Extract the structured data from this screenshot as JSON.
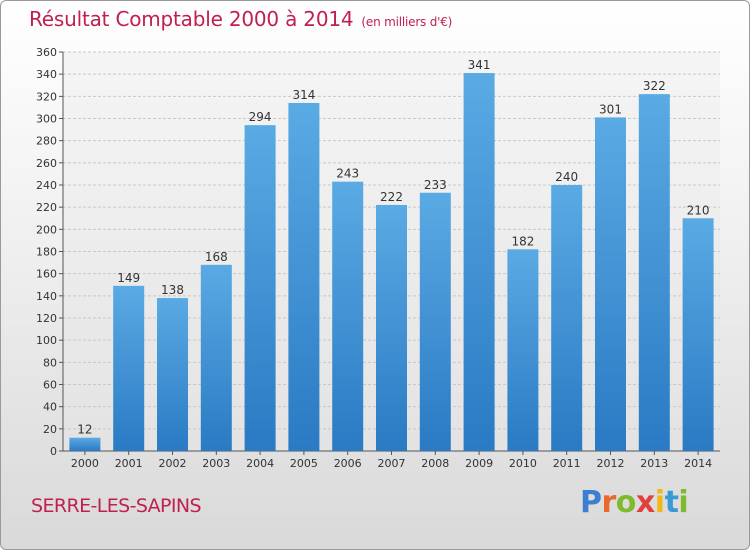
{
  "header": {
    "title": "Résultat Comptable 2000 à 2014",
    "subtitle": "(en milliers d'€)"
  },
  "footer": {
    "commune": "SERRE-LES-SAPINS",
    "logo_text": "Proxiti",
    "logo_letters": [
      {
        "char": "P",
        "color": "#3a7fd0"
      },
      {
        "char": "r",
        "color": "#e8692e"
      },
      {
        "char": "o",
        "color": "#7fba2c"
      },
      {
        "char": "x",
        "color": "#e2403c"
      },
      {
        "char": "i",
        "color": "#f2b81a"
      },
      {
        "char": "t",
        "color": "#3a9ad8"
      },
      {
        "char": "i",
        "color": "#7fba2c"
      }
    ]
  },
  "colors": {
    "title": "#c0204f",
    "bar_top": "#5aaae4",
    "bar_bottom": "#2a7ac4",
    "grid": "#c8c8c8",
    "axis": "#555555"
  },
  "chart_data": {
    "type": "bar",
    "categories": [
      "2000",
      "2001",
      "2002",
      "2003",
      "2004",
      "2005",
      "2006",
      "2007",
      "2008",
      "2009",
      "2010",
      "2011",
      "2012",
      "2013",
      "2014"
    ],
    "values": [
      12,
      149,
      138,
      168,
      294,
      314,
      243,
      222,
      233,
      341,
      182,
      240,
      301,
      322,
      210
    ],
    "ylim": [
      0,
      360
    ],
    "ytick_step": 20,
    "grid": true,
    "xlabel": "",
    "ylabel": ""
  }
}
